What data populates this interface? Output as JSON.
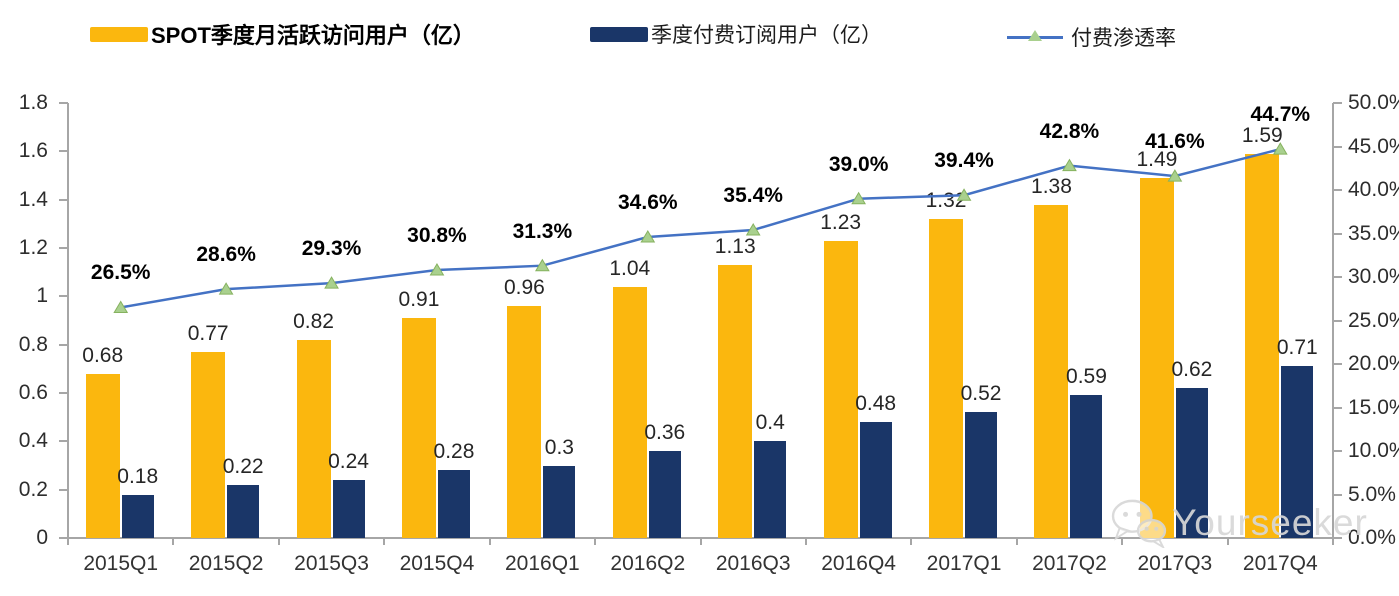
{
  "legend": {
    "items": [
      {
        "label": "SPOT季度月活跃访问用户（亿）"
      },
      {
        "label": "季度付费订阅用户（亿）"
      },
      {
        "label": "付费渗透率"
      }
    ]
  },
  "watermark": {
    "text": "Yourseeker",
    "icon": "wechat-logo"
  },
  "colors": {
    "mau_bar": "#FBB70E",
    "subs_bar": "#1A3668",
    "line": "#4472C4",
    "marker": "#A9D08E",
    "marker_edge": "#86B25F",
    "axis": "#A6A6A6",
    "label_text": "#262626",
    "pct_text": "#000000",
    "watermark": "#D7D7D7"
  },
  "chart_data": {
    "type": "combo",
    "title": "",
    "grid": false,
    "legend_position": "top",
    "categories": [
      "2015Q1",
      "2015Q2",
      "2015Q3",
      "2015Q4",
      "2016Q1",
      "2016Q2",
      "2016Q3",
      "2016Q4",
      "2017Q1",
      "2017Q2",
      "2017Q3",
      "2017Q4"
    ],
    "series": [
      {
        "name": "SPOT季度月活跃访问用户（亿）",
        "type": "bar",
        "axis": "left",
        "values": [
          0.68,
          0.77,
          0.82,
          0.91,
          0.96,
          1.04,
          1.13,
          1.23,
          1.32,
          1.38,
          1.49,
          1.59
        ],
        "labels": [
          "0.68",
          "0.77",
          "0.82",
          "0.91",
          "0.96",
          "1.04",
          "1.13",
          "1.23",
          "1.32",
          "1.38",
          "1.49",
          "1.59"
        ]
      },
      {
        "name": "季度付费订阅用户（亿）",
        "type": "bar",
        "axis": "left",
        "values": [
          0.18,
          0.22,
          0.24,
          0.28,
          0.3,
          0.36,
          0.4,
          0.48,
          0.52,
          0.59,
          0.62,
          0.71
        ],
        "labels": [
          "0.18",
          "0.22",
          "0.24",
          "0.28",
          "0.3",
          "0.36",
          "0.4",
          "0.48",
          "0.52",
          "0.59",
          "0.62",
          "0.71"
        ]
      },
      {
        "name": "付费渗透率",
        "type": "line",
        "axis": "right",
        "values": [
          26.5,
          28.6,
          29.3,
          30.8,
          31.3,
          34.6,
          35.4,
          39.0,
          39.4,
          42.8,
          41.6,
          44.7
        ],
        "labels": [
          "26.5%",
          "28.6%",
          "29.3%",
          "30.8%",
          "31.3%",
          "34.6%",
          "35.4%",
          "39.0%",
          "39.4%",
          "42.8%",
          "41.6%",
          "44.7%"
        ]
      }
    ],
    "left_axis": {
      "min": 0,
      "max": 1.8,
      "step": 0.2,
      "ticks": [
        "0",
        "0.2",
        "0.4",
        "0.6",
        "0.8",
        "1",
        "1.2",
        "1.4",
        "1.6",
        "1.8"
      ]
    },
    "right_axis": {
      "min": 0,
      "max": 50,
      "step": 5,
      "ticks": [
        "0.0%",
        "5.0%",
        "10.0%",
        "15.0%",
        "20.0%",
        "25.0%",
        "30.0%",
        "35.0%",
        "40.0%",
        "45.0%",
        "50.0%"
      ]
    }
  }
}
